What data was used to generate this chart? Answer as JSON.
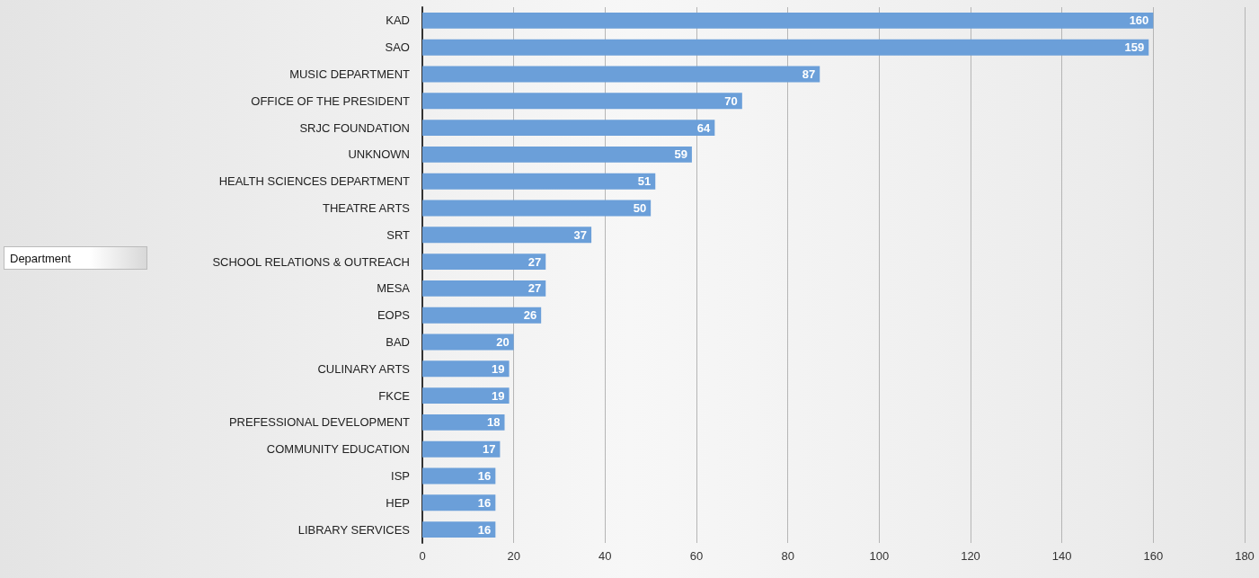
{
  "chart_data": {
    "type": "bar",
    "orientation": "horizontal",
    "annotations": [
      "Department"
    ],
    "categories": [
      "KAD",
      "SAO",
      "MUSIC DEPARTMENT",
      "OFFICE OF THE PRESIDENT",
      "SRJC FOUNDATION",
      "UNKNOWN",
      "HEALTH SCIENCES DEPARTMENT",
      "THEATRE ARTS",
      "SRT",
      "SCHOOL RELATIONS & OUTREACH",
      "MESA",
      "EOPS",
      "BAD",
      "CULINARY ARTS",
      "FKCE",
      "PREFESSIONAL DEVELOPMENT",
      "COMMUNITY EDUCATION",
      "ISP",
      "HEP",
      "LIBRARY SERVICES"
    ],
    "values": [
      160,
      159,
      87,
      70,
      64,
      59,
      51,
      50,
      37,
      27,
      27,
      26,
      20,
      19,
      19,
      18,
      17,
      16,
      16,
      16
    ],
    "color": "#6b9fd9",
    "xlim": [
      0,
      180
    ],
    "xticks": [
      0,
      20,
      40,
      60,
      80,
      100,
      120,
      140,
      160,
      180
    ],
    "grid": "x",
    "data_labels": true
  }
}
